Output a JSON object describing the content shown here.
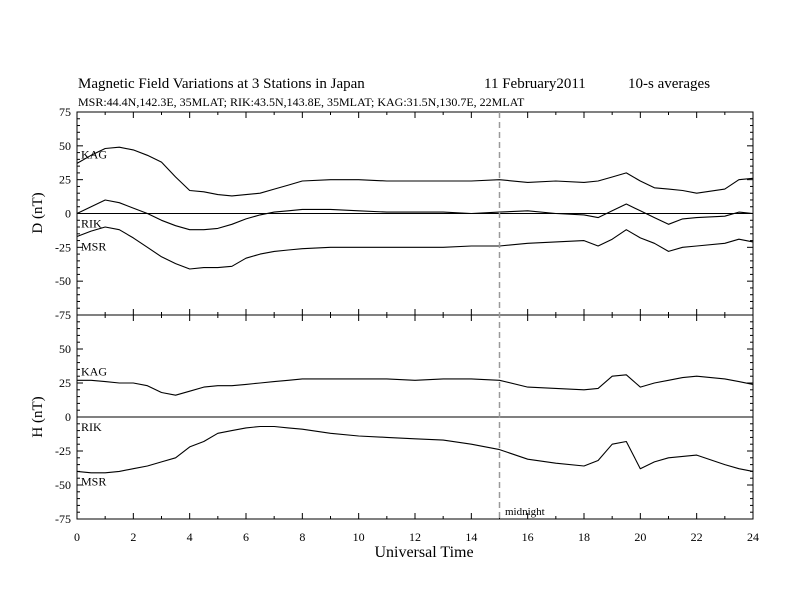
{
  "header": {
    "title": "Magnetic Field Variations at 3 Stations in Japan",
    "date": "11 February2011",
    "averaging": "10-s averages",
    "stations": "MSR:44.4N,142.3E, 35MLAT;  RIK:43.5N,143.8E, 35MLAT;  KAG:31.5N,130.7E, 22MLAT"
  },
  "colors": {
    "axis": "#000000",
    "line": "#000000",
    "midnight_line": "#999999"
  },
  "chart_data": [
    {
      "type": "line",
      "panel": "top",
      "ylabel": "D (nT)",
      "ylim": [
        -75,
        75
      ],
      "yticks": [
        -75,
        -50,
        -25,
        0,
        25,
        50,
        75
      ],
      "xlim": [
        0,
        24
      ],
      "series": [
        {
          "name": "KAG",
          "x": [
            0,
            0.5,
            1,
            1.5,
            2,
            2.5,
            3,
            3.5,
            4,
            4.5,
            5,
            5.5,
            6,
            6.5,
            7,
            7.5,
            8,
            9,
            10,
            11,
            12,
            13,
            14,
            15,
            16,
            17,
            18,
            18.5,
            19,
            19.5,
            20,
            20.5,
            21,
            21.5,
            22,
            23,
            23.5,
            24
          ],
          "y": [
            37,
            43,
            48,
            49,
            47,
            43,
            38,
            27,
            17,
            16,
            14,
            13,
            14,
            15,
            18,
            21,
            24,
            25,
            25,
            24,
            24,
            24,
            24,
            25,
            23,
            24,
            23,
            24,
            27,
            30,
            24,
            19,
            18,
            17,
            15,
            18,
            25,
            26
          ]
        },
        {
          "name": "RIK",
          "x": [
            0,
            0.5,
            1,
            1.5,
            2,
            2.5,
            3,
            3.5,
            4,
            4.5,
            5,
            5.5,
            6,
            6.5,
            7,
            7.5,
            8,
            9,
            10,
            11,
            12,
            13,
            14,
            15,
            16,
            17,
            18,
            18.5,
            19,
            19.5,
            20,
            20.5,
            21,
            21.5,
            22,
            23,
            23.5,
            24
          ],
          "y": [
            0,
            5,
            10,
            8,
            4,
            0,
            -5,
            -9,
            -12,
            -12,
            -11,
            -8,
            -4,
            -1,
            1,
            2,
            3,
            3,
            2,
            1,
            1,
            1,
            0,
            1,
            2,
            0,
            -1,
            -3,
            2,
            7,
            2,
            -3,
            -8,
            -4,
            -3,
            -2,
            1,
            0
          ]
        },
        {
          "name": "MSR",
          "x": [
            0,
            0.5,
            1,
            1.5,
            2,
            2.5,
            3,
            3.5,
            4,
            4.5,
            5,
            5.5,
            6,
            6.5,
            7,
            7.5,
            8,
            9,
            10,
            11,
            12,
            13,
            14,
            15,
            16,
            17,
            18,
            18.5,
            19,
            19.5,
            20,
            20.5,
            21,
            21.5,
            22,
            23,
            23.5,
            24
          ],
          "y": [
            -17,
            -13,
            -10,
            -12,
            -18,
            -25,
            -32,
            -37,
            -41,
            -40,
            -40,
            -39,
            -33,
            -30,
            -28,
            -27,
            -26,
            -25,
            -25,
            -25,
            -25,
            -25,
            -24,
            -24,
            -22,
            -21,
            -20,
            -24,
            -19,
            -12,
            -18,
            -22,
            -28,
            -25,
            -24,
            -22,
            -19,
            -21
          ]
        }
      ]
    },
    {
      "type": "line",
      "panel": "bottom",
      "ylabel": "H (nT)",
      "ylim": [
        -75,
        75
      ],
      "yticks": [
        -75,
        -50,
        -25,
        0,
        25,
        50,
        75
      ],
      "xlim": [
        0,
        24
      ],
      "xticks": [
        0,
        2,
        4,
        6,
        8,
        10,
        12,
        14,
        16,
        18,
        20,
        22,
        24
      ],
      "xlabel": "Universal Time",
      "midnight_x": 15,
      "midnight_label": "midnight",
      "series": [
        {
          "name": "KAG",
          "x": [
            0,
            0.5,
            1,
            1.5,
            2,
            2.5,
            3,
            3.5,
            4,
            4.5,
            5,
            5.5,
            6,
            6.5,
            7,
            7.5,
            8,
            9,
            10,
            11,
            12,
            13,
            14,
            15,
            16,
            17,
            18,
            18.5,
            19,
            19.5,
            20,
            20.5,
            21,
            21.5,
            22,
            23,
            23.5,
            24
          ],
          "y": [
            27,
            27,
            26,
            25,
            25,
            23,
            18,
            16,
            19,
            22,
            23,
            23,
            24,
            25,
            26,
            27,
            28,
            28,
            28,
            28,
            27,
            28,
            28,
            27,
            22,
            21,
            20,
            21,
            30,
            31,
            22,
            25,
            27,
            29,
            30,
            28,
            26,
            24
          ]
        },
        {
          "name": "RIK",
          "x": [
            0,
            24
          ],
          "y": [
            0,
            0
          ]
        },
        {
          "name": "MSR",
          "x": [
            0,
            0.5,
            1,
            1.5,
            2,
            2.5,
            3,
            3.5,
            4,
            4.5,
            5,
            5.5,
            6,
            6.5,
            7,
            7.5,
            8,
            9,
            10,
            11,
            12,
            13,
            14,
            15,
            16,
            17,
            18,
            18.5,
            19,
            19.5,
            20,
            20.5,
            21,
            21.5,
            22,
            23,
            23.5,
            24
          ],
          "y": [
            -40,
            -41,
            -41,
            -40,
            -38,
            -36,
            -33,
            -30,
            -22,
            -18,
            -12,
            -10,
            -8,
            -7,
            -7,
            -8,
            -9,
            -12,
            -14,
            -15,
            -16,
            -17,
            -20,
            -24,
            -31,
            -34,
            -36,
            -32,
            -20,
            -18,
            -38,
            -33,
            -30,
            -29,
            -28,
            -35,
            -38,
            -40
          ]
        }
      ]
    }
  ]
}
